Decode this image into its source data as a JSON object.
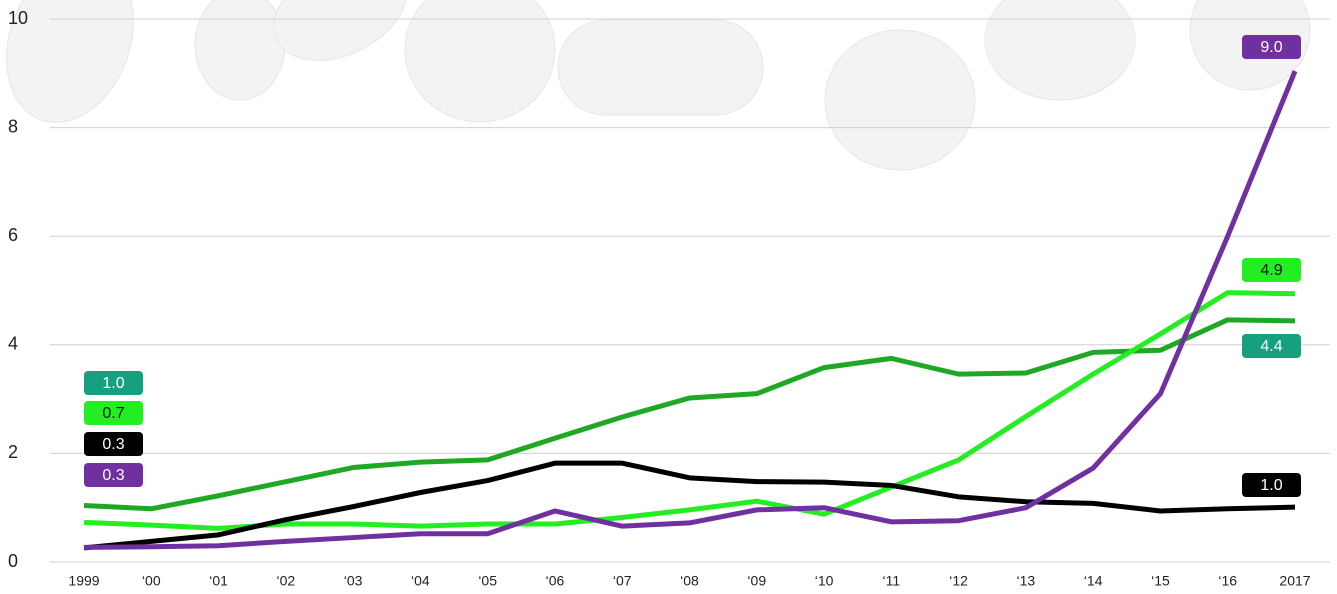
{
  "chart_data": {
    "type": "line",
    "categories": [
      "1999",
      "‘00",
      "‘01",
      "‘02",
      "‘03",
      "‘04",
      "‘05",
      "‘06",
      "‘07",
      "‘08",
      "‘09",
      "‘10",
      "‘11",
      "‘12",
      "‘13",
      "‘14",
      "‘15",
      "‘16",
      "2017"
    ],
    "ylim": [
      0,
      10
    ],
    "yticks": [
      0,
      2,
      4,
      6,
      8,
      10
    ],
    "grid": true,
    "series": [
      {
        "color": "#1fa824",
        "label_color": "#16a080",
        "values": [
          1.04,
          0.98,
          1.22,
          1.48,
          1.74,
          1.84,
          1.88,
          2.28,
          2.67,
          3.02,
          3.1,
          3.58,
          3.75,
          3.46,
          3.48,
          3.86,
          3.9,
          4.46,
          4.44
        ],
        "value_labels": [
          "1.0",
          null,
          null,
          null,
          null,
          null,
          null,
          null,
          null,
          null,
          null,
          null,
          null,
          null,
          null,
          null,
          null,
          null,
          "4.4"
        ]
      },
      {
        "color": "#22ee22",
        "label_color": "#22ee22",
        "values": [
          0.73,
          0.68,
          0.62,
          0.7,
          0.7,
          0.66,
          0.7,
          0.7,
          0.82,
          0.96,
          1.12,
          0.88,
          1.38,
          1.88,
          2.68,
          3.46,
          4.2,
          4.96,
          4.94
        ],
        "value_labels": [
          "0.7",
          null,
          null,
          null,
          null,
          null,
          null,
          null,
          null,
          null,
          null,
          null,
          null,
          null,
          null,
          null,
          null,
          null,
          "4.9"
        ]
      },
      {
        "color": "#000000",
        "label_color": "#000000",
        "values": [
          0.26,
          0.38,
          0.5,
          0.78,
          1.02,
          1.28,
          1.5,
          1.82,
          1.82,
          1.55,
          1.48,
          1.47,
          1.41,
          1.2,
          1.11,
          1.08,
          0.94,
          0.98,
          1.01
        ],
        "value_labels": [
          "0.3",
          null,
          null,
          null,
          null,
          null,
          null,
          null,
          null,
          null,
          null,
          null,
          null,
          null,
          null,
          null,
          null,
          null,
          "1.0"
        ]
      },
      {
        "color": "#7030a0",
        "label_color": "#7030a0",
        "values": [
          0.27,
          0.28,
          0.3,
          0.38,
          0.45,
          0.52,
          0.52,
          0.94,
          0.66,
          0.72,
          0.96,
          1.0,
          0.74,
          0.76,
          1.0,
          1.73,
          3.1,
          6.0,
          9.04
        ],
        "value_labels": [
          "0.3",
          null,
          null,
          null,
          null,
          null,
          null,
          null,
          null,
          null,
          null,
          null,
          null,
          null,
          null,
          null,
          null,
          null,
          "9.0"
        ]
      }
    ]
  }
}
